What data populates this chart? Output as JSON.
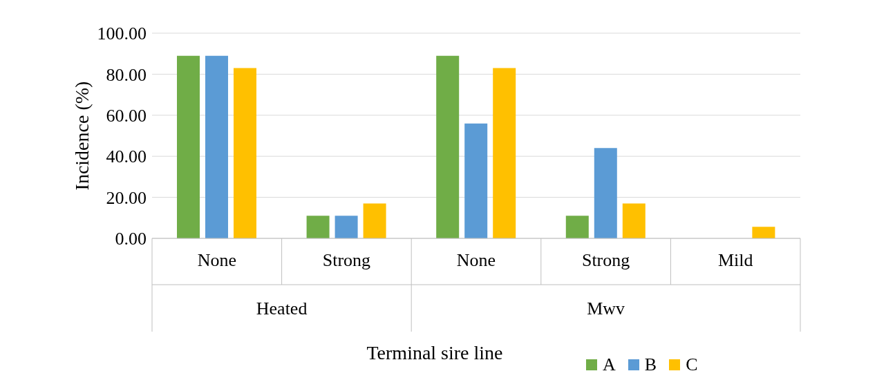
{
  "chart_data": {
    "type": "bar",
    "categories": [
      "None",
      "Strong",
      "None",
      "Strong",
      "Mild"
    ],
    "annotations": [
      "Heated",
      "Mwv"
    ],
    "xlabel": "Terminal sire line",
    "ylabel": "Incidence (%)",
    "series": [
      {
        "name": "A",
        "color": "#70ad47",
        "values": [
          89,
          11,
          89,
          11,
          0
        ]
      },
      {
        "name": "B",
        "color": "#5b9bd5",
        "values": [
          89,
          11,
          56,
          44,
          0
        ]
      },
      {
        "name": "C",
        "color": "#ffc000",
        "values": [
          83,
          17,
          83,
          17,
          5.6
        ]
      }
    ],
    "ylim": [
      0,
      100
    ],
    "yticks": [
      {
        "value": 0,
        "label": "0.00"
      },
      {
        "value": 20,
        "label": "20.00"
      },
      {
        "value": 40,
        "label": "40.00"
      },
      {
        "value": 60,
        "label": "60.00"
      },
      {
        "value": 80,
        "label": "80.00"
      },
      {
        "value": 100,
        "label": "100.00"
      }
    ],
    "grid": "y",
    "legend": "bottom"
  }
}
